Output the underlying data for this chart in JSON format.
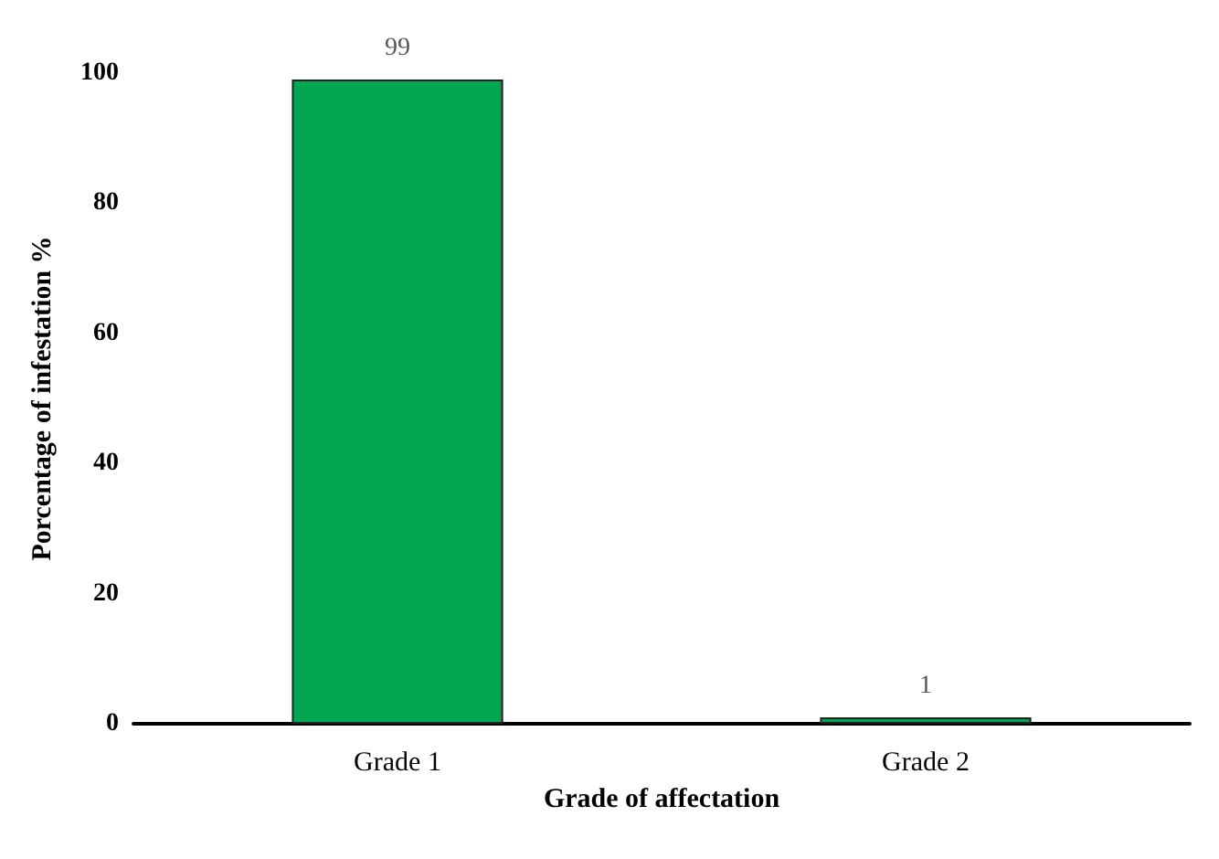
{
  "chart_data": {
    "type": "bar",
    "xlabel": "Grade of affectation",
    "ylabel": "Porcentage of infestation %",
    "categories": [
      "Grade 1",
      "Grade 2"
    ],
    "values": [
      99,
      1
    ],
    "color": "#00a651",
    "ylim": [
      0,
      100
    ],
    "yticks": [
      0,
      20,
      40,
      60,
      80,
      100
    ],
    "grid": false,
    "data_labels": true
  }
}
